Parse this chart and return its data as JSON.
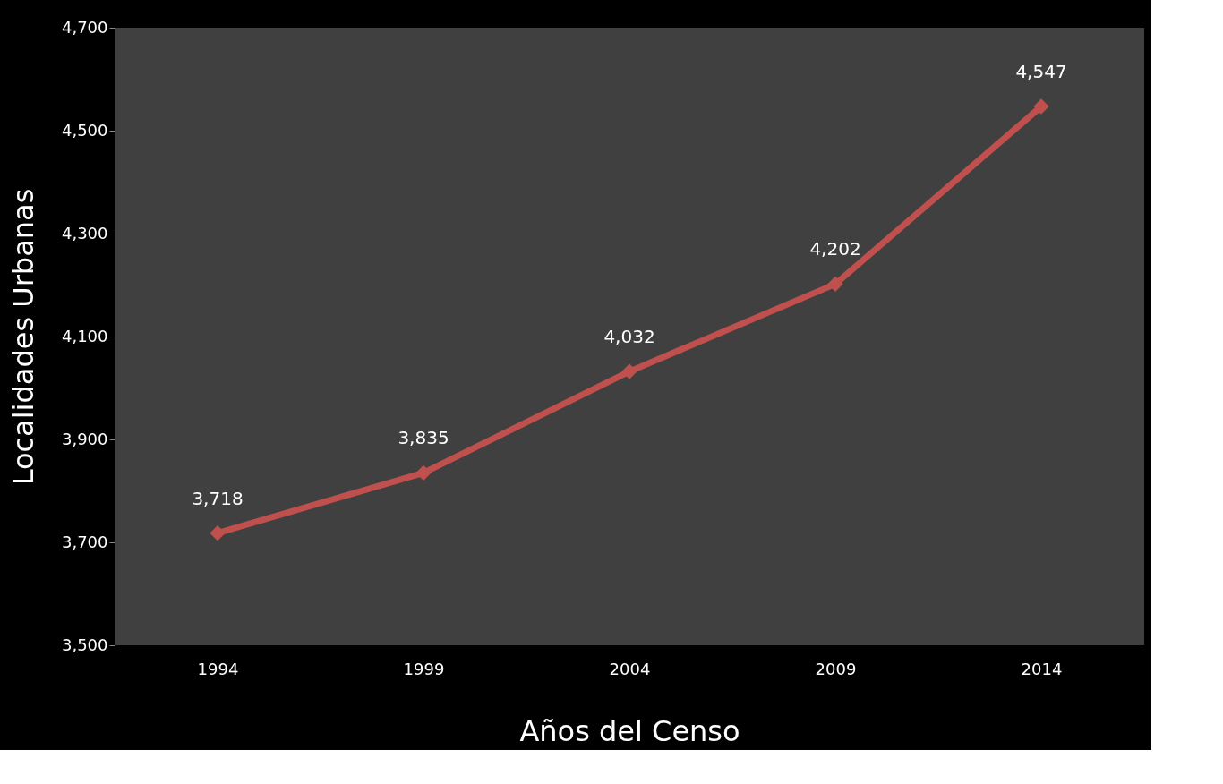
{
  "chart_data": {
    "type": "line",
    "xlabel": "Años del Censo",
    "ylabel": "Localidades Urbanas",
    "categories": [
      "1994",
      "1999",
      "2004",
      "2009",
      "2014"
    ],
    "series": [
      {
        "color": "#c0504d",
        "values": [
          3718,
          3835,
          4032,
          4202,
          4547
        ],
        "value_labels": [
          "3,718",
          "3,835",
          "4,032",
          "4,202",
          "4,547"
        ]
      }
    ],
    "ylim": [
      3500,
      4700
    ],
    "yticks": [
      {
        "value": 3500,
        "label": "3,500"
      },
      {
        "value": 3700,
        "label": "3,700"
      },
      {
        "value": 3900,
        "label": "3,900"
      },
      {
        "value": 4100,
        "label": "4,100"
      },
      {
        "value": 4300,
        "label": "4,300"
      },
      {
        "value": 4500,
        "label": "4,500"
      },
      {
        "value": 4700,
        "label": "4,700"
      }
    ],
    "grid": false,
    "marker": "diamond",
    "line_style": "solid"
  }
}
